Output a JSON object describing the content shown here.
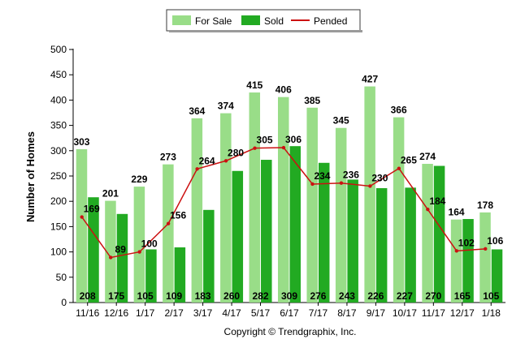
{
  "chart_data": {
    "type": "bar",
    "categories": [
      "11/16",
      "12/16",
      "1/17",
      "2/17",
      "3/17",
      "4/17",
      "5/17",
      "6/17",
      "7/17",
      "8/17",
      "9/17",
      "10/17",
      "11/17",
      "12/17",
      "1/18"
    ],
    "series": [
      {
        "name": "For Sale",
        "type": "bar",
        "color": "#99dd88",
        "values": [
          303,
          201,
          229,
          273,
          364,
          374,
          415,
          406,
          385,
          345,
          427,
          366,
          274,
          164,
          178
        ]
      },
      {
        "name": "Sold",
        "type": "bar",
        "color": "#22aa22",
        "values": [
          208,
          175,
          105,
          109,
          183,
          260,
          282,
          309,
          276,
          243,
          226,
          227,
          270,
          165,
          105
        ]
      },
      {
        "name": "Pended",
        "type": "line",
        "color": "#cc1111",
        "values": [
          169,
          89,
          100,
          156,
          264,
          280,
          305,
          306,
          234,
          236,
          230,
          265,
          184,
          102,
          106
        ]
      }
    ],
    "ylabel": "Number of Homes",
    "xlabel": "",
    "ylim": [
      0,
      500
    ],
    "yticks": [
      0,
      50,
      100,
      150,
      200,
      250,
      300,
      350,
      400,
      450,
      500
    ],
    "grid": false,
    "legend": "top-center"
  },
  "footer": {
    "copyright": "Copyright © Trendgraphix, Inc."
  }
}
